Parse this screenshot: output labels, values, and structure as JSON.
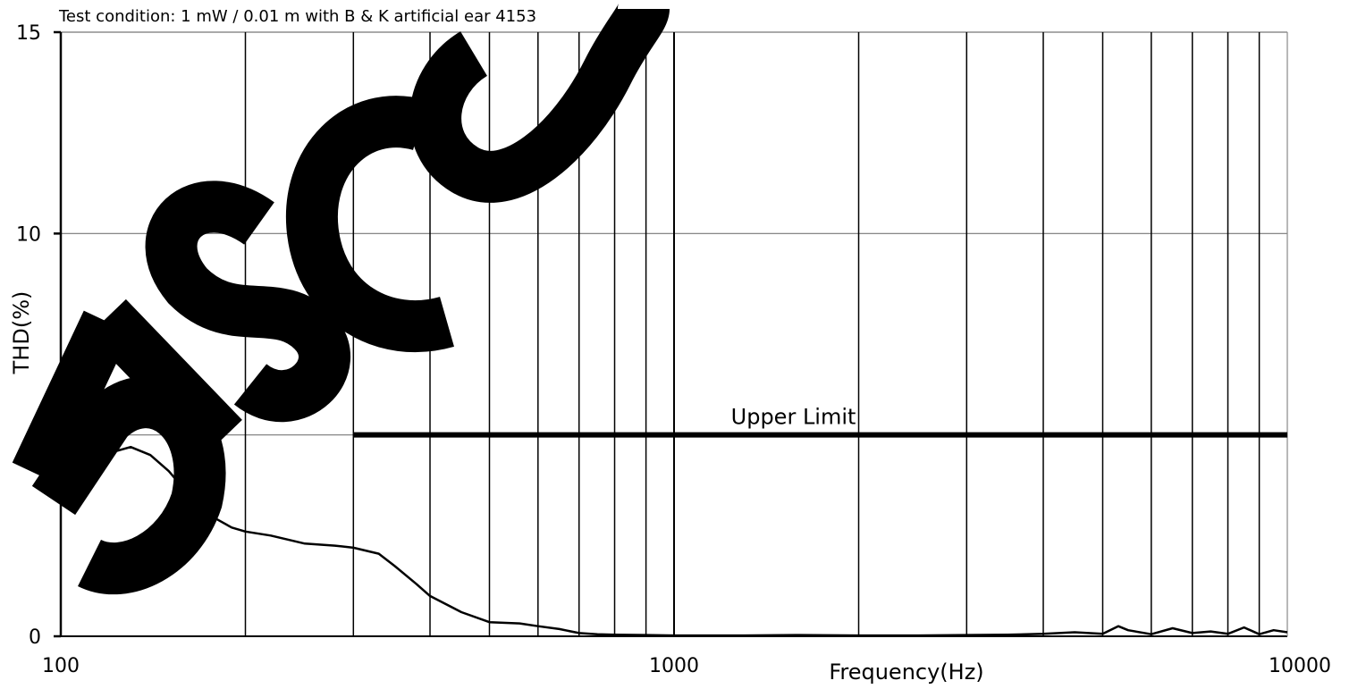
{
  "chart_data": {
    "type": "line",
    "subtitle": "Test condition: 1 mW / 0.01 m with B & K artificial ear 4153",
    "xlabel": "Frequency(Hz)",
    "ylabel": "THD(%)",
    "x_scale": "log",
    "xlim": [
      100,
      10000
    ],
    "ylim": [
      0,
      15
    ],
    "x_ticks": [
      100,
      1000,
      10000
    ],
    "x_tick_labels": [
      "100",
      "1000",
      "10000"
    ],
    "y_ticks": [
      0,
      5,
      10,
      15
    ],
    "y_tick_labels": [
      "0",
      "5",
      "10",
      "15"
    ],
    "grid": true,
    "watermark": "DISCO",
    "colors": {
      "series": "#000000",
      "grid_major": "#000000",
      "grid_minor": "#888888"
    },
    "series": [
      {
        "x": [
          100,
          105,
          110,
          115,
          120,
          130,
          140,
          150,
          160,
          170,
          180,
          190,
          200,
          220,
          250,
          280,
          300,
          330,
          350,
          380,
          400,
          450,
          500,
          560,
          600,
          650,
          700,
          750,
          800,
          900,
          1000,
          1300,
          1600,
          2000,
          2500,
          3000,
          3500,
          4000,
          4500,
          5000,
          5300,
          5500,
          6000,
          6500,
          7000,
          7500,
          8000,
          8500,
          9000,
          9500,
          10000
        ],
        "y": [
          4.2,
          4.3,
          4.45,
          4.4,
          4.55,
          4.7,
          4.5,
          4.1,
          3.6,
          3.2,
          2.9,
          2.7,
          2.6,
          2.5,
          2.3,
          2.25,
          2.2,
          2.05,
          1.75,
          1.3,
          1.0,
          0.6,
          0.35,
          0.32,
          0.25,
          0.18,
          0.08,
          0.05,
          0.04,
          0.03,
          0.02,
          0.02,
          0.03,
          0.02,
          0.02,
          0.03,
          0.04,
          0.06,
          0.1,
          0.06,
          0.25,
          0.15,
          0.05,
          0.2,
          0.08,
          0.12,
          0.06,
          0.22,
          0.05,
          0.15,
          0.1
        ]
      }
    ],
    "reference_lines": [
      {
        "label": "Upper Limit",
        "y": 5,
        "x_start": 300,
        "x_end": 10000
      }
    ]
  }
}
